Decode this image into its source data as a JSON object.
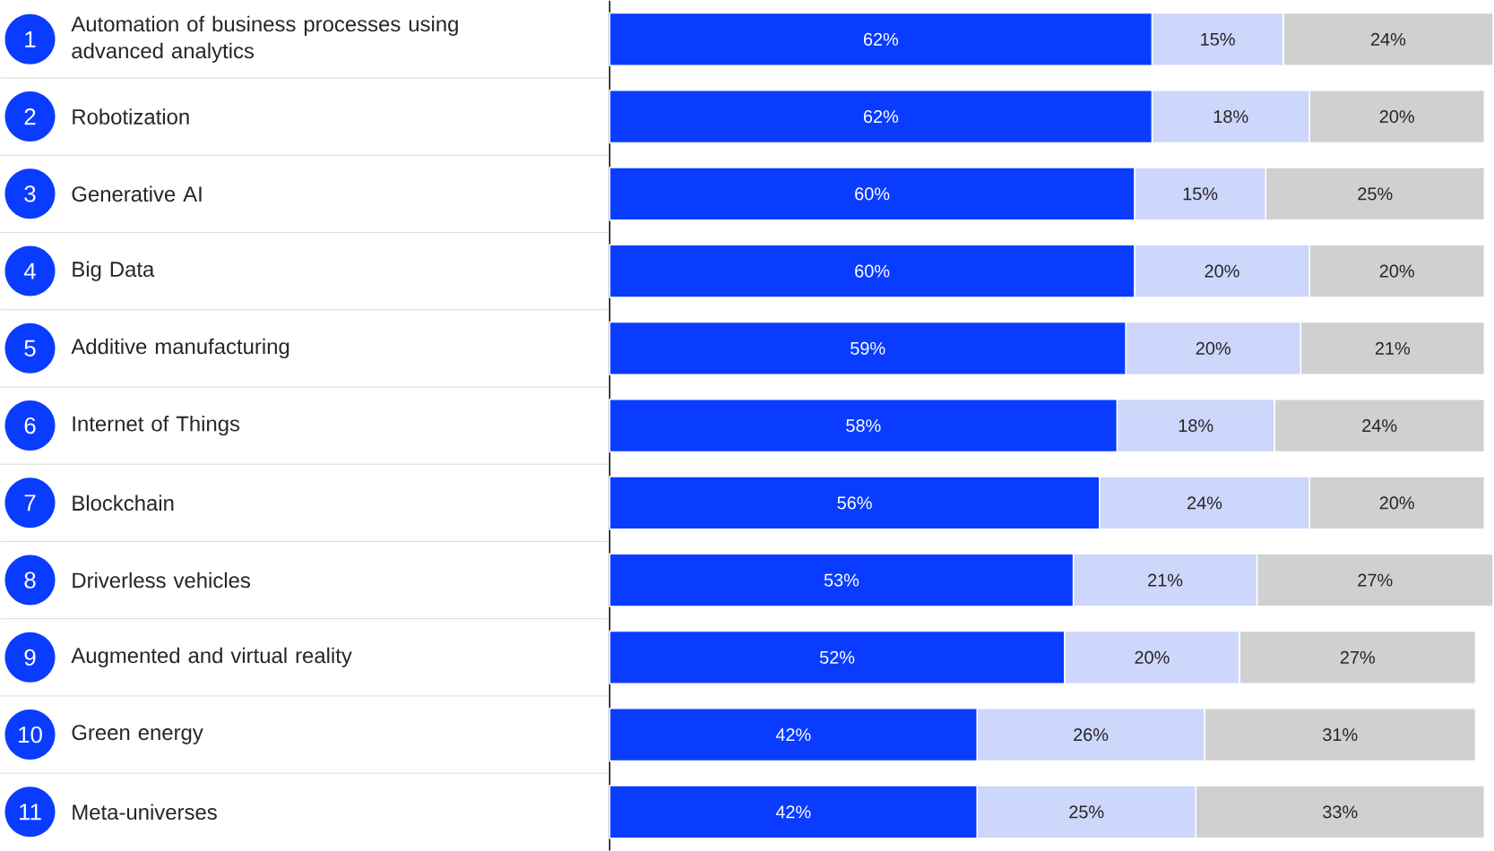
{
  "chart_data": {
    "type": "bar",
    "orientation": "horizontal",
    "stacked": true,
    "categories": [
      "Automation of business processes using advanced analytics",
      "Robotization",
      "Generative AI",
      "Big Data",
      "Additive manufacturing",
      "Internet of Things",
      "Blockchain",
      "Driverless vehicles",
      "Augmented and virtual reality",
      "Green energy",
      "Meta-universes"
    ],
    "annotations": [
      "1",
      "2",
      "3",
      "4",
      "5",
      "6",
      "7",
      "8",
      "9",
      "10",
      "11"
    ],
    "series": [
      {
        "color": "#0a3cff",
        "values": [
          62,
          62,
          60,
          60,
          59,
          58,
          56,
          53,
          52,
          42,
          42
        ],
        "value_labels": [
          "62%",
          "62%",
          "60%",
          "60%",
          "59%",
          "58%",
          "56%",
          "53%",
          "52%",
          "42%",
          "42%"
        ]
      },
      {
        "color": "#cdd6fb",
        "values": [
          15,
          18,
          15,
          20,
          20,
          18,
          24,
          21,
          20,
          26,
          25
        ],
        "value_labels": [
          "15%",
          "18%",
          "15%",
          "20%",
          "20%",
          "18%",
          "24%",
          "21%",
          "20%",
          "26%",
          "25%"
        ]
      },
      {
        "color": "#d0d0d0",
        "values": [
          24,
          20,
          25,
          20,
          21,
          24,
          20,
          27,
          27,
          31,
          33
        ],
        "value_labels": [
          "24%",
          "20%",
          "25%",
          "20%",
          "21%",
          "24%",
          "20%",
          "27%",
          "27%",
          "31%",
          "33%"
        ]
      }
    ]
  }
}
